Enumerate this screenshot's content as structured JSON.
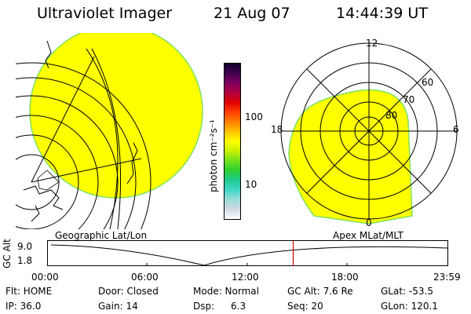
{
  "header": {
    "title": "Ultraviolet Imager",
    "date": "21 Aug 07",
    "time": "14:44:39 UT"
  },
  "left_panel": {
    "caption": "Geographic Lat/Lon"
  },
  "right_panel": {
    "caption": "Apex MLat/MLT",
    "mlt_labels": {
      "top": "12",
      "left": "18",
      "right": "6",
      "bottom": "0"
    },
    "mlat_labels": [
      "60",
      "70",
      "80"
    ]
  },
  "colorbar": {
    "unit_label": "photon cm⁻²s⁻¹",
    "ticks": [
      "100",
      "10"
    ],
    "colors": [
      "#ffffff",
      "#d0d8e0",
      "#9adcd8",
      "#40d8c8",
      "#20c890",
      "#30d030",
      "#70e020",
      "#c8f000",
      "#ffff00",
      "#ffc000",
      "#ff8000",
      "#ff4000",
      "#e00000",
      "#b00040",
      "#800060",
      "#400050",
      "#10002a"
    ]
  },
  "altitude_strip": {
    "ylabel": "GC Alt",
    "ymax": "9.0",
    "ymin": "1.8",
    "xticks": [
      "00:00",
      "06:00",
      "12:00",
      "18:00",
      "23:59"
    ],
    "current_time_fraction": 0.614
  },
  "info": {
    "row1": {
      "flt": "Flt: HOME",
      "door": "Door: Closed",
      "mode": "Mode: Normal",
      "gcalt": "GC Alt: 7.6 Re",
      "glat": "GLat: -53.5"
    },
    "row2": {
      "ip": "IP: 36.0",
      "gain": "Gain: 14",
      "dsp": "Dsp:",
      "dsp_val": "6.3",
      "seq": "Seq: 20",
      "glon": "GLon: 120.1"
    }
  },
  "accent_colors": {
    "aurora_fill": "#ffff00",
    "aurora_edge": "#80e060",
    "time_marker": "#cc0000"
  }
}
